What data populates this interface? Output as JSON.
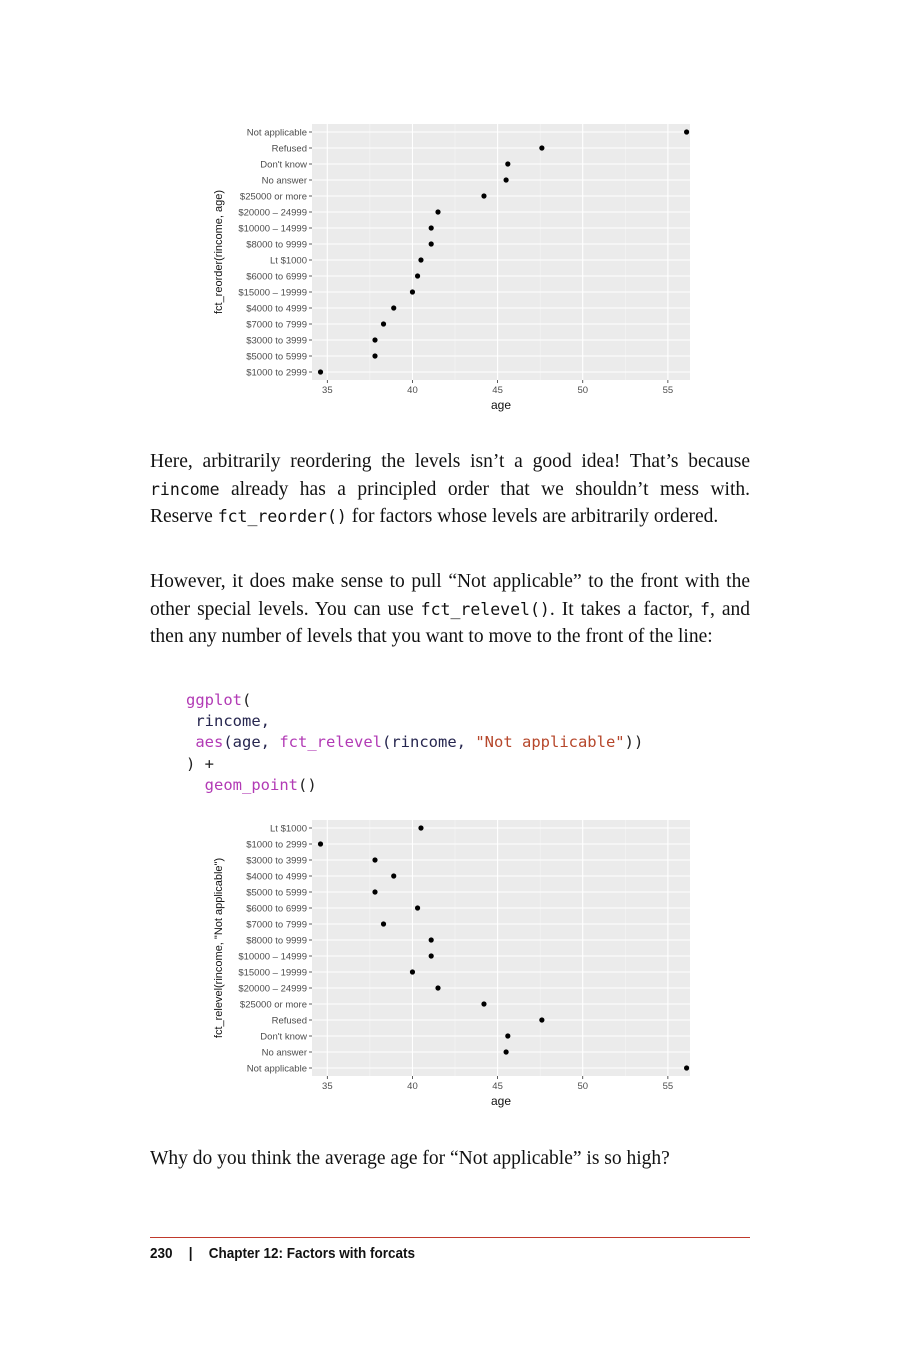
{
  "chart_data": [
    {
      "type": "scatter",
      "xlabel": "age",
      "ylabel": "fct_reorder(rincome, age)",
      "xlim": [
        34.1,
        56.3
      ],
      "xticks": [
        35,
        40,
        45,
        50,
        55
      ],
      "categories_top_to_bottom": [
        "Not applicable",
        "Refused",
        "Don't know",
        "No answer",
        "$25000 or more",
        "$20000 – 24999",
        "$10000 – 14999",
        "$8000 to 9999",
        "Lt $1000",
        "$6000 to 6999",
        "$15000 – 19999",
        "$4000 to 4999",
        "$7000 to 7999",
        "$3000 to 3999",
        "$5000 to 5999",
        "$1000 to 2999"
      ],
      "values": [
        56.1,
        47.6,
        45.6,
        45.5,
        44.2,
        41.5,
        41.1,
        41.1,
        40.5,
        40.3,
        40.0,
        38.9,
        38.3,
        37.8,
        37.8,
        34.6
      ],
      "grid": true
    },
    {
      "type": "scatter",
      "xlabel": "age",
      "ylabel": "fct_relevel(rincome, \"Not applicable\")",
      "xlim": [
        34.1,
        56.3
      ],
      "xticks": [
        35,
        40,
        45,
        50,
        55
      ],
      "categories_top_to_bottom": [
        "Lt $1000",
        "$1000 to 2999",
        "$3000 to 3999",
        "$4000 to 4999",
        "$5000 to 5999",
        "$6000 to 6999",
        "$7000 to 7999",
        "$8000 to 9999",
        "$10000 – 14999",
        "$15000 – 19999",
        "$20000 – 24999",
        "$25000 or more",
        "Refused",
        "Don't know",
        "No answer",
        "Not applicable"
      ],
      "values": [
        40.5,
        34.6,
        37.8,
        38.9,
        37.8,
        40.3,
        38.3,
        41.1,
        41.1,
        40.0,
        41.5,
        44.2,
        47.6,
        45.6,
        45.5,
        56.1
      ],
      "grid": true
    }
  ],
  "text": {
    "p1_a": "Here, arbitrarily reordering the levels isn’t a good idea! That’s because ",
    "p1_code1": "rincome",
    "p1_b": " already has a principled order that we shouldn’t mess with. Reserve ",
    "p1_code2": "fct_reorder()",
    "p1_c": " for factors whose levels are arbi­trarily ordered.",
    "p2_a": "However, it does make sense to pull “Not applicable” to the front with the other special levels. You can use ",
    "p2_code1": "fct_relevel()",
    "p2_b": ". It takes a factor, ",
    "p2_code2": "f",
    "p2_c": ", and then any number of levels that you want to move to the front of the line:",
    "p3": "Why do you think the average age for “Not applicable” is so high?"
  },
  "code": {
    "l1_fn": "ggplot",
    "l1_rest": "(",
    "l2": " rincome,",
    "l3_fn": "aes",
    "l3_a": "(age, ",
    "l3_fn2": "fct_relevel",
    "l3_b": "(rincome, ",
    "l3_str": "\"Not applicable\"",
    "l3_c": "))",
    "l4": ") +",
    "l5_fn": "geom_point",
    "l5_rest": "()"
  },
  "footer": {
    "page": "230",
    "sep": "|",
    "chapter": "Chapter 12: Factors with forcats"
  }
}
